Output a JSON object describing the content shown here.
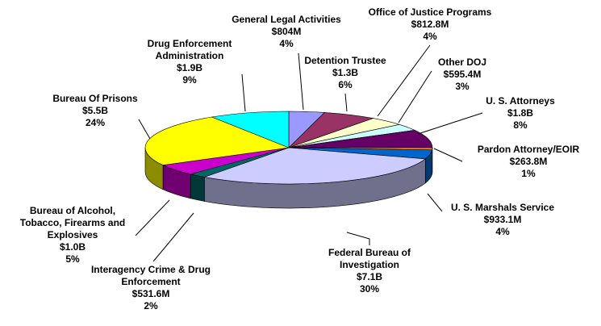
{
  "chart_data": {
    "type": "pie3d",
    "categories": [
      "General Legal Activities",
      "Detention Trustee",
      "Office of Justice Programs",
      "Other DOJ",
      "U. S. Attorneys",
      "Pardon Attorney/EOIR",
      "U. S. Marshals Service",
      "Federal Bureau of Investigation",
      "Interagency Crime & Drug Enforcement",
      "Bureau of Alcohol, Tobacco, Firearms and Explosives",
      "Bureau Of Prisons",
      "Drug Enforcement Administration"
    ],
    "amounts": [
      "$804M",
      "$1.3B",
      "$812.8M",
      "$595.4M",
      "$1.8B",
      "$263.8M",
      "$933.1M",
      "$7.1B",
      "$531.6M",
      "$1.0B",
      "$5.5B",
      "$1.9B"
    ],
    "values": [
      4,
      6,
      4,
      3,
      8,
      1,
      4,
      30,
      2,
      5,
      24,
      9
    ],
    "value_labels": [
      "4%",
      "6%",
      "4%",
      "3%",
      "8%",
      "1%",
      "4%",
      "30%",
      "2%",
      "5%",
      "24%",
      "9%"
    ],
    "colors": [
      "#9999ff",
      "#993366",
      "#ffffcc",
      "#ccffff",
      "#660066",
      "#ff8000",
      "#0066cc",
      "#ccccff",
      "#006666",
      "#cc00cc",
      "#ffff00",
      "#00ffff"
    ]
  }
}
